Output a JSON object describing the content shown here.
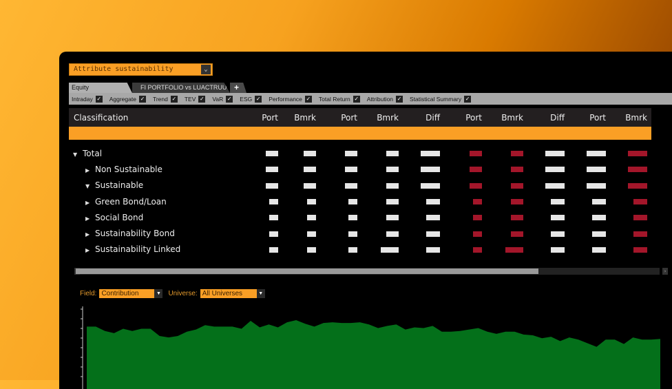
{
  "dropdown": {
    "value": "Attribute sustainability"
  },
  "tabs": [
    {
      "label": "Equity"
    },
    {
      "label": "FI PORTFOLIO vs LUACTRUU"
    },
    {
      "label": "+"
    }
  ],
  "checkboxes": [
    {
      "label": "Intraday",
      "checked": true
    },
    {
      "label": "Aggregate",
      "checked": true
    },
    {
      "label": "Trend",
      "checked": true
    },
    {
      "label": "TEV",
      "checked": true
    },
    {
      "label": "VaR",
      "checked": true
    },
    {
      "label": "ESG",
      "checked": true
    },
    {
      "label": "Performance",
      "checked": true
    },
    {
      "label": "Total Return",
      "checked": true
    },
    {
      "label": "Attribution",
      "checked": true
    },
    {
      "label": "Statistical Summary",
      "checked": true
    }
  ],
  "table": {
    "headers": [
      "Classification",
      "Port",
      "Bmrk",
      "Port",
      "Bmrk",
      "Diff",
      "Port",
      "Bmrk",
      "Diff",
      "Port",
      "Bmrk"
    ],
    "column_mask_colors": [
      "#e6e6e6",
      "#e6e6e6",
      "#e6e6e6",
      "#e6e6e6",
      "#e6e6e6",
      "#a3162a",
      "#a3162a",
      "#e6e6e6",
      "#e6e6e6",
      "#a3162a"
    ],
    "rows": [
      {
        "label": "Total",
        "expanded": true,
        "level": 0
      },
      {
        "label": "Non Sustainable",
        "expanded": false,
        "level": 1
      },
      {
        "label": "Sustainable",
        "expanded": true,
        "level": 1
      },
      {
        "label": "Green Bond/Loan",
        "expanded": false,
        "level": 1
      },
      {
        "label": "Social Bond",
        "expanded": false,
        "level": 1
      },
      {
        "label": "Sustainability Bond",
        "expanded": false,
        "level": 1
      },
      {
        "label": "Sustainability Linked",
        "expanded": false,
        "level": 1
      }
    ]
  },
  "scrollbar": {
    "position_fraction": 0.0,
    "visible_fraction": 0.79
  },
  "controls": {
    "field_label": "Field:",
    "field_value": "Contribution",
    "universe_label": "Universe:",
    "universe_value": "All Universes"
  },
  "chart_data": {
    "type": "area",
    "color": "#04701a",
    "values": [
      72,
      72,
      66,
      63,
      69,
      66,
      69,
      69,
      59,
      57,
      59,
      65,
      68,
      74,
      72,
      72,
      72,
      69,
      80,
      71,
      75,
      71,
      78,
      81,
      76,
      72,
      77,
      78,
      77,
      77,
      78,
      75,
      70,
      73,
      75,
      68,
      71,
      70,
      73,
      65,
      65,
      66,
      68,
      70,
      65,
      62,
      65,
      65,
      61,
      60,
      56,
      58,
      52,
      57,
      54,
      49,
      44,
      54,
      54,
      48,
      57,
      54,
      54,
      55
    ]
  }
}
